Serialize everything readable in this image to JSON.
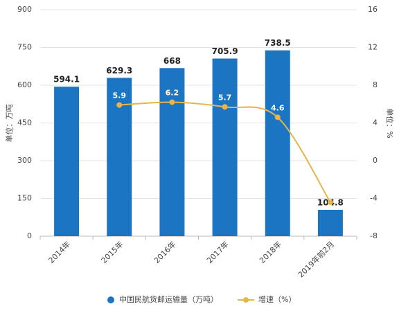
{
  "chart_data": {
    "type": "bar-line",
    "categories": [
      "2014年",
      "2015年",
      "2016年",
      "2017年",
      "2018年",
      "2019年前2月"
    ],
    "series": [
      {
        "name": "中国民航货邮运输量（万吨）",
        "color": "#1b75c2",
        "type": "bar",
        "values": [
          594.1,
          629.3,
          668,
          705.9,
          738.5,
          104.8
        ]
      },
      {
        "name": "增速（%）",
        "color": "#e6b64c",
        "type": "line",
        "axis": "y2",
        "values": [
          null,
          5.9,
          6.2,
          5.7,
          4.6,
          -4.4
        ],
        "value_labels": [
          null,
          "5.9",
          "6.2",
          "5.7",
          "4.6",
          null
        ]
      }
    ],
    "ylabel": "单位：万吨",
    "y2label": "单位：%",
    "ylim": [
      0,
      900
    ],
    "yticks": [
      0,
      150,
      300,
      450,
      600,
      750,
      900
    ],
    "y2lim": [
      -8,
      16
    ],
    "y2ticks": [
      -8,
      -4,
      0,
      4,
      8,
      12,
      16
    ],
    "grid": true
  }
}
